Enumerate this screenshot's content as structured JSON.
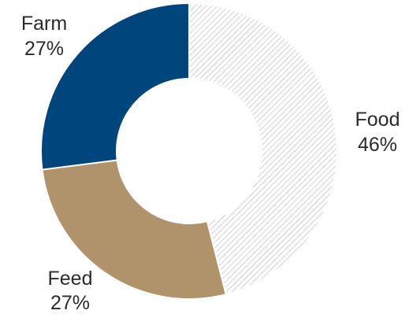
{
  "chart_data": {
    "type": "pie",
    "variant": "donut",
    "title": "",
    "slices": [
      {
        "label": "Food",
        "value": 46,
        "value_label": "46%",
        "color": "#ffffff",
        "pattern": "diagonal-hatch",
        "pattern_color": "#bdbdbd"
      },
      {
        "label": "Feed",
        "value": 27,
        "value_label": "27%",
        "color": "#b0926b"
      },
      {
        "label": "Farm",
        "value": 27,
        "value_label": "27%",
        "color": "#00457c"
      }
    ],
    "start": "top",
    "direction": "clockwise",
    "legend": "none"
  }
}
